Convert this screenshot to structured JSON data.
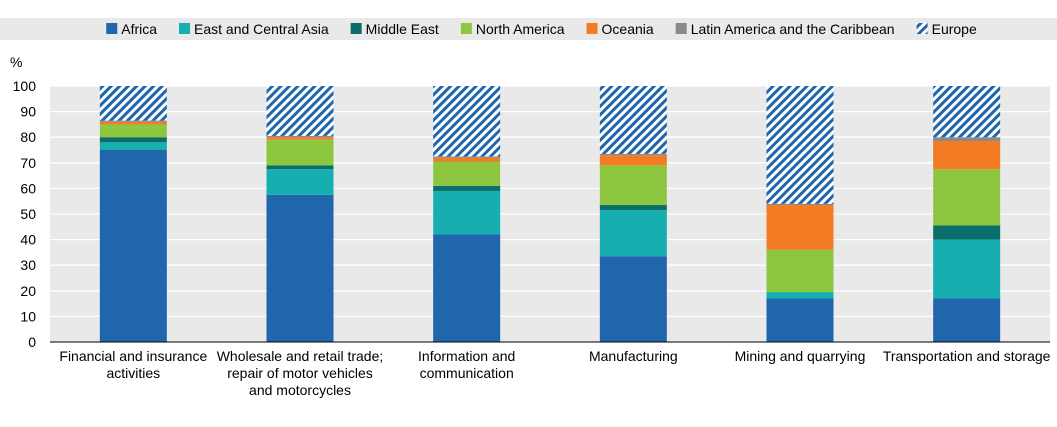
{
  "chart_data": {
    "type": "bar",
    "stacked": true,
    "title": "",
    "xlabel": "",
    "ylabel": "%",
    "ylim": [
      0,
      100
    ],
    "yticks": [
      0,
      10,
      20,
      30,
      40,
      50,
      60,
      70,
      80,
      90,
      100
    ],
    "grid": true,
    "legend_position": "top",
    "categories": [
      "Financial and insurance activities",
      "Wholesale and retail trade; repair of motor vehicles and motorcycles",
      "Information and communication",
      "Manufacturing",
      "Mining and quarrying",
      "Transportation and storage"
    ],
    "series": [
      {
        "name": "Africa",
        "color": "#1f66ad",
        "pattern": "solid",
        "values": [
          75,
          57.5,
          42,
          33.5,
          17,
          17
        ]
      },
      {
        "name": "East and Central Asia",
        "color": "#17aeb0",
        "pattern": "solid",
        "values": [
          3,
          10,
          17,
          18,
          2.5,
          23
        ]
      },
      {
        "name": "Middle East",
        "color": "#0b6e6a",
        "pattern": "solid",
        "values": [
          2,
          1.5,
          2,
          2,
          0,
          5.5
        ]
      },
      {
        "name": "North America",
        "color": "#8dc63f",
        "pattern": "solid",
        "values": [
          5,
          10,
          9.5,
          15.5,
          16.5,
          22
        ]
      },
      {
        "name": "Oceania",
        "color": "#f27b23",
        "pattern": "solid",
        "values": [
          1,
          1,
          1.5,
          4,
          17.5,
          11
        ]
      },
      {
        "name": "Latin America and the Caribbean",
        "color": "#8a8a8a",
        "pattern": "solid",
        "values": [
          0.5,
          0.5,
          0.5,
          0.5,
          0.5,
          1.5
        ]
      },
      {
        "name": "Europe",
        "color": "#1f66ad",
        "pattern": "hatch",
        "values": [
          13.5,
          19.5,
          27.5,
          26.5,
          46,
          20
        ]
      }
    ]
  }
}
